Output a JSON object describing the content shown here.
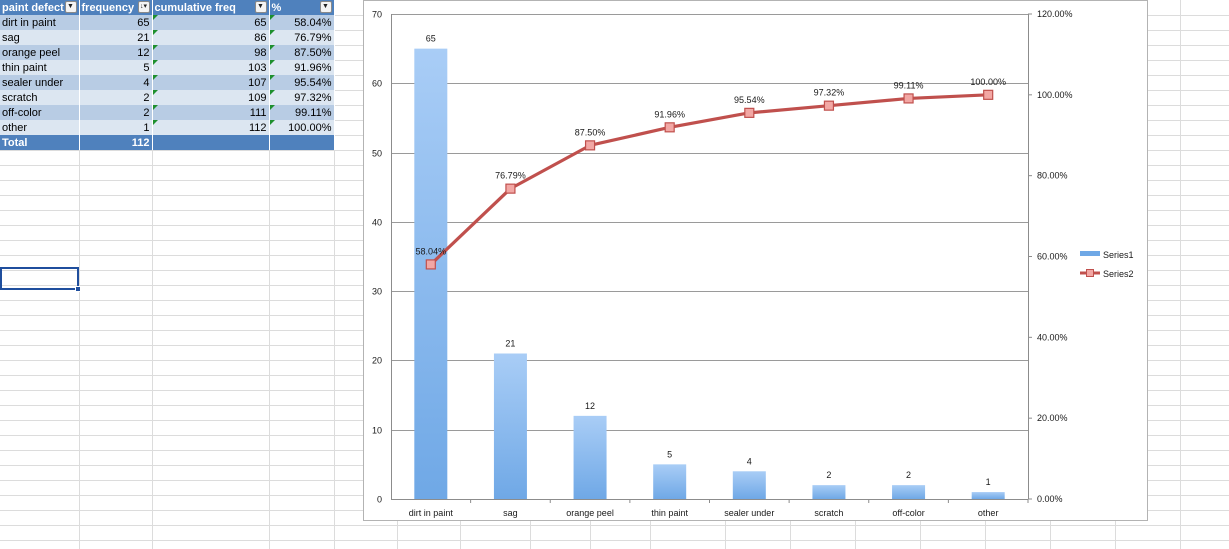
{
  "table": {
    "headers": [
      "paint defect",
      "frequency",
      "cumulative freq",
      "%"
    ],
    "header_filter_icons": [
      "filter-dropdown",
      "sort-descending-filter",
      "filter-dropdown",
      "filter-dropdown"
    ],
    "rows": [
      {
        "defect": "dirt in paint",
        "frequency": "65",
        "cumulative": "65",
        "percent": "58.04%"
      },
      {
        "defect": "sag",
        "frequency": "21",
        "cumulative": "86",
        "percent": "76.79%"
      },
      {
        "defect": "orange peel",
        "frequency": "12",
        "cumulative": "98",
        "percent": "87.50%"
      },
      {
        "defect": "thin paint",
        "frequency": "5",
        "cumulative": "103",
        "percent": "91.96%"
      },
      {
        "defect": "sealer under",
        "frequency": "4",
        "cumulative": "107",
        "percent": "95.54%"
      },
      {
        "defect": "scratch",
        "frequency": "2",
        "cumulative": "109",
        "percent": "97.32%"
      },
      {
        "defect": "off-color",
        "frequency": "2",
        "cumulative": "111",
        "percent": "99.11%"
      },
      {
        "defect": "other",
        "frequency": "1",
        "cumulative": "112",
        "percent": "100.00%"
      }
    ],
    "total": {
      "label": "Total",
      "frequency": "112"
    }
  },
  "colors": {
    "table_header": "#4f81bd",
    "row_dark": "#b8cce4",
    "row_light": "#dce6f1",
    "bar": "#6fa8e6",
    "line": "#c0504d",
    "selection": "#1f4e9d"
  },
  "chart_data": {
    "type": "bar",
    "categories": [
      "dirt in paint",
      "sag",
      "orange peel",
      "thin paint",
      "sealer under",
      "scratch",
      "off-color",
      "other"
    ],
    "series": [
      {
        "name": "Series1",
        "type": "bar",
        "axis": "left",
        "values": [
          65,
          21,
          12,
          5,
          4,
          2,
          2,
          1
        ],
        "labels": [
          "65",
          "21",
          "12",
          "5",
          "4",
          "2",
          "2",
          "1"
        ]
      },
      {
        "name": "Series2",
        "type": "line",
        "axis": "right",
        "values": [
          58.04,
          76.79,
          87.5,
          91.96,
          95.54,
          97.32,
          99.11,
          100.0
        ],
        "labels": [
          "58.04%",
          "76.79%",
          "87.50%",
          "91.96%",
          "95.54%",
          "97.32%",
          "99.11%",
          "100.00%"
        ]
      }
    ],
    "ylim": [
      0,
      70
    ],
    "yticks": [
      "0",
      "10",
      "20",
      "30",
      "40",
      "50",
      "60",
      "70"
    ],
    "y2lim": [
      0,
      120
    ],
    "y2ticks": [
      "0.00%",
      "20.00%",
      "40.00%",
      "60.00%",
      "80.00%",
      "100.00%",
      "120.00%"
    ],
    "grid": true,
    "legend": "right"
  }
}
